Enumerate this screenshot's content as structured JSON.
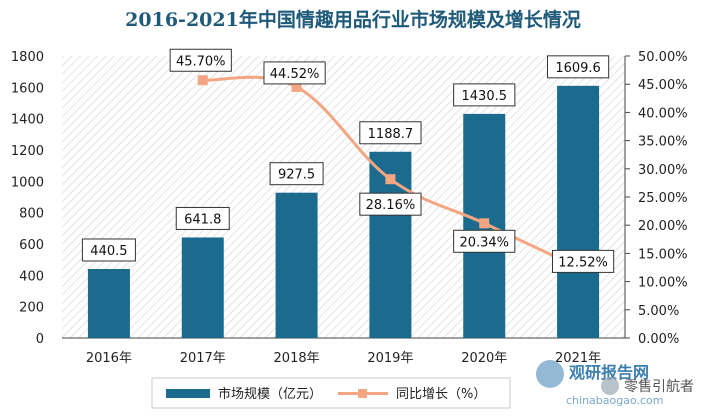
{
  "chart_data": {
    "type": "bar",
    "title": "2016-2021年中国情趣用品行业市场规模及增长情况",
    "categories": [
      "2016年",
      "2017年",
      "2018年",
      "2019年",
      "2020年",
      "2021年"
    ],
    "series": [
      {
        "name": "市场规模（亿元）",
        "type": "bar",
        "axis": "left",
        "values": [
          440.5,
          641.8,
          927.5,
          1188.7,
          1430.5,
          1609.6
        ],
        "labels": [
          "440.5",
          "641.8",
          "927.5",
          "1188.7",
          "1430.5",
          "1609.6"
        ],
        "color": "#1b6b8f"
      },
      {
        "name": "同比增长（%）",
        "type": "line",
        "axis": "right",
        "values": [
          null,
          45.7,
          44.52,
          28.16,
          20.34,
          12.52
        ],
        "labels": [
          "",
          "45.70%",
          "44.52%",
          "28.16%",
          "20.34%",
          "12.52%"
        ],
        "color": "#f4a582"
      }
    ],
    "y_left": {
      "min": 0,
      "max": 1800,
      "step": 200,
      "ticks": [
        "0",
        "200",
        "400",
        "600",
        "800",
        "1000",
        "1200",
        "1400",
        "1600",
        "1800"
      ]
    },
    "y_right": {
      "min": 0,
      "max": 50,
      "step": 5,
      "ticks": [
        "0.00%",
        "5.00%",
        "10.00%",
        "15.00%",
        "20.00%",
        "25.00%",
        "30.00%",
        "35.00%",
        "40.00%",
        "45.00%",
        "50.00%"
      ]
    },
    "grid": false,
    "legend_position": "bottom"
  },
  "watermark": {
    "brand": "观研报告网",
    "url": "chinabaogao.com",
    "account": "零售引航者"
  }
}
